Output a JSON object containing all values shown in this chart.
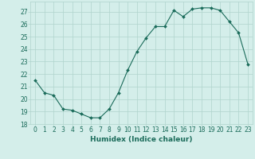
{
  "x": [
    0,
    1,
    2,
    3,
    4,
    5,
    6,
    7,
    8,
    9,
    10,
    11,
    12,
    13,
    14,
    15,
    16,
    17,
    18,
    19,
    20,
    21,
    22,
    23
  ],
  "y": [
    21.5,
    20.5,
    20.3,
    19.2,
    19.1,
    18.8,
    18.5,
    18.5,
    19.2,
    20.5,
    22.3,
    23.8,
    24.9,
    25.8,
    25.8,
    27.1,
    26.6,
    27.2,
    27.3,
    27.3,
    27.1,
    26.2,
    25.3,
    22.8
  ],
  "line_color": "#1a6b5a",
  "marker": "D",
  "marker_size": 2,
  "bg_color": "#d4eeea",
  "grid_color": "#b0d4cc",
  "xlabel": "Humidex (Indice chaleur)",
  "ylim": [
    18,
    27.8
  ],
  "xlim": [
    -0.5,
    23.5
  ],
  "yticks": [
    18,
    19,
    20,
    21,
    22,
    23,
    24,
    25,
    26,
    27
  ],
  "xticks": [
    0,
    1,
    2,
    3,
    4,
    5,
    6,
    7,
    8,
    9,
    10,
    11,
    12,
    13,
    14,
    15,
    16,
    17,
    18,
    19,
    20,
    21,
    22,
    23
  ],
  "tick_color": "#1a6b5a",
  "label_color": "#1a6b5a",
  "xlabel_fontsize": 6.5,
  "tick_fontsize": 5.5
}
